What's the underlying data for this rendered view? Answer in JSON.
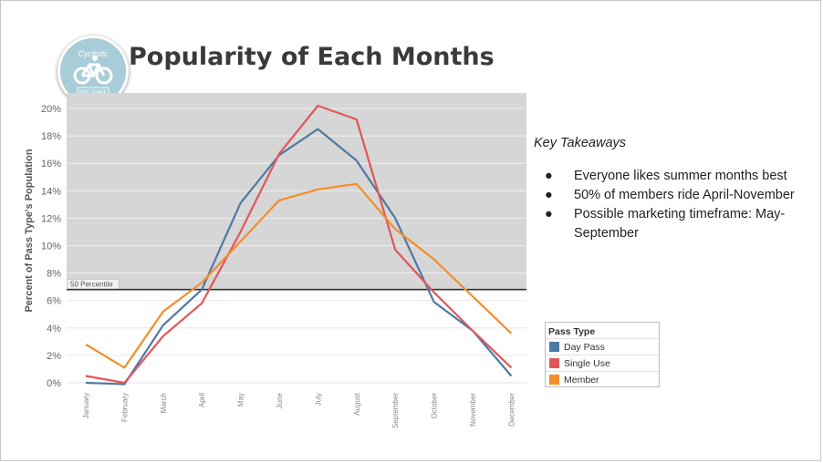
{
  "title": "Popularity of Each Months",
  "logo": {
    "text_top": "Cyclistic",
    "text_bottom": "BIKE SHARE"
  },
  "takeaways": {
    "heading": "Key Takeaways",
    "items": [
      "Everyone likes summer months best",
      "50% of members ride April-November",
      "Possible marketing timeframe: May-September"
    ]
  },
  "legend": {
    "title": "Pass Type"
  },
  "chart_data": {
    "type": "line",
    "ylabel": "Percent of Pass Type's Population",
    "xlabel": "",
    "categories": [
      "January",
      "February",
      "March",
      "April",
      "May",
      "June",
      "July",
      "August",
      "September",
      "October",
      "November",
      "December"
    ],
    "yticks": [
      "0%",
      "2%",
      "4%",
      "6%",
      "8%",
      "10%",
      "12%",
      "14%",
      "16%",
      "18%",
      "20%"
    ],
    "ylim": [
      0,
      21
    ],
    "reference_line": {
      "label": "50 Percentile",
      "value": 6.8
    },
    "series": [
      {
        "name": "Day Pass",
        "color": "#4e79a7",
        "values": [
          0.0,
          -0.1,
          4.2,
          6.8,
          13.1,
          16.6,
          18.5,
          16.2,
          12.0,
          5.9,
          3.8,
          0.5
        ]
      },
      {
        "name": "Single Use",
        "color": "#e15759",
        "values": [
          0.5,
          0.0,
          3.4,
          5.8,
          11.0,
          16.7,
          20.2,
          19.2,
          9.7,
          6.6,
          3.8,
          1.1
        ]
      },
      {
        "name": "Member",
        "color": "#f28e2b",
        "values": [
          2.8,
          1.1,
          5.2,
          7.3,
          10.3,
          13.3,
          14.1,
          14.5,
          11.2,
          9.0,
          6.3,
          3.6
        ]
      }
    ],
    "shaded_region": "above-reference-line",
    "grid": true
  }
}
